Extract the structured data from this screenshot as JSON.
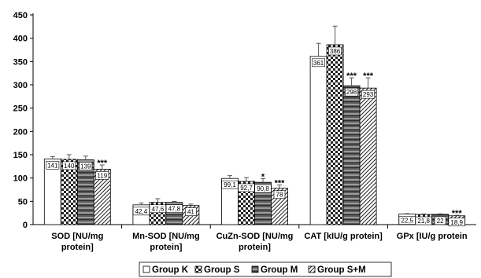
{
  "chart_data": {
    "type": "bar",
    "categories": [
      [
        "SOD [NU/mg",
        "protein]"
      ],
      [
        "Mn-SOD [NU/mg",
        "protein]"
      ],
      [
        "CuZn-SOD [NU/mg",
        "protein]"
      ],
      [
        "CAT [kIU/g protein]"
      ],
      [
        "GPx [IU/g protein"
      ]
    ],
    "series": [
      {
        "name": "Group K",
        "values": [
          141,
          42.4,
          99.1,
          361,
          22.5
        ],
        "errors": [
          5,
          4,
          6,
          28,
          1
        ],
        "labels": [
          "141",
          "42,4",
          "99,1",
          "361",
          "22,5"
        ],
        "significance": [
          "",
          "",
          "",
          "",
          ""
        ]
      },
      {
        "name": "Group S",
        "values": [
          140,
          47.6,
          92.7,
          386,
          21.8
        ],
        "errors": [
          10,
          8,
          8,
          40,
          1
        ],
        "labels": [
          "140",
          "47,6",
          "92,7",
          "386",
          "21,8"
        ],
        "significance": [
          "",
          "",
          "",
          "",
          ""
        ]
      },
      {
        "name": "Group M",
        "values": [
          139,
          47.8,
          90.8,
          298,
          22
        ],
        "errors": [
          8,
          2,
          8,
          17,
          1
        ],
        "labels": [
          "139",
          "47,8",
          "90,8",
          "298",
          "22"
        ],
        "significance": [
          "",
          "",
          "*",
          "***",
          ""
        ]
      },
      {
        "name": "Group S+M",
        "values": [
          119,
          41,
          78,
          293,
          18.9
        ],
        "errors": [
          9,
          3,
          7,
          22,
          1
        ],
        "labels": [
          "119",
          "41",
          "78",
          "293",
          "18,9"
        ],
        "significance": [
          "***",
          "",
          "***",
          "***",
          "***"
        ]
      }
    ],
    "ylim": [
      0,
      450
    ],
    "yticks": [
      0,
      50,
      100,
      150,
      200,
      250,
      300,
      350,
      400,
      450
    ],
    "grid": false,
    "legend_position": "bottom-center"
  }
}
